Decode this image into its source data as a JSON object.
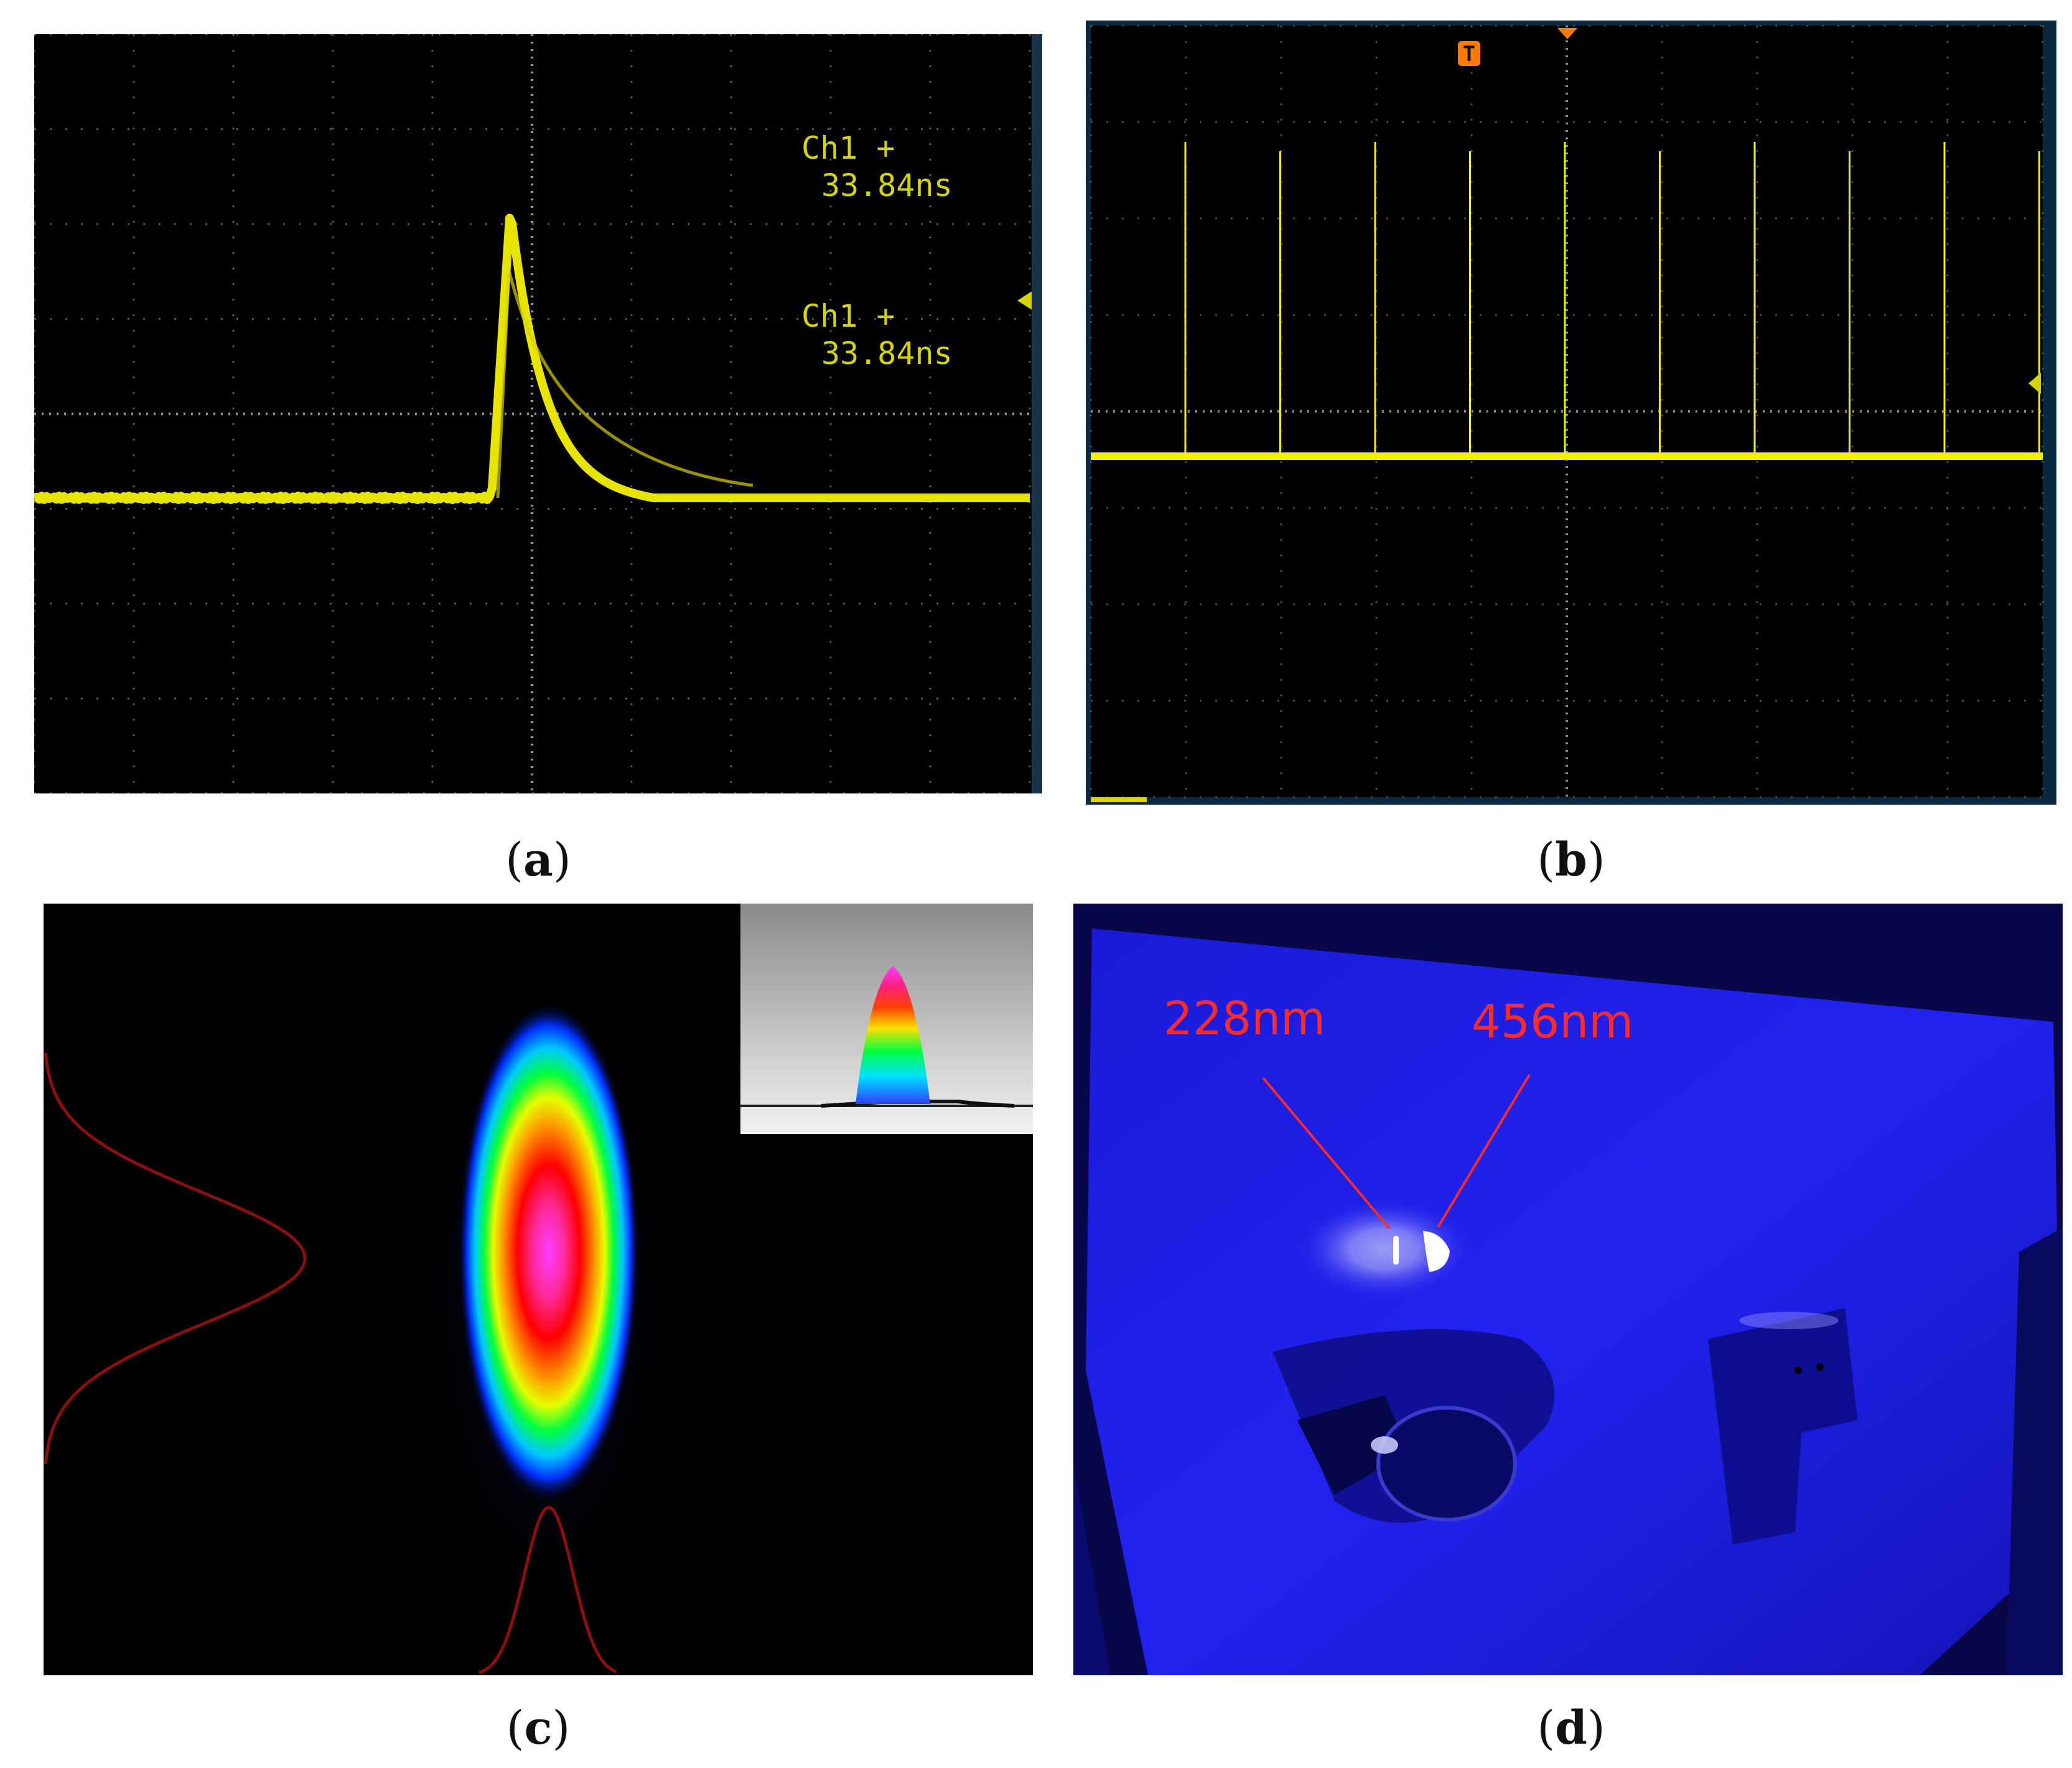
{
  "panels": [
    {
      "id": "a",
      "label": "a"
    },
    {
      "id": "b",
      "label": "b"
    },
    {
      "id": "c",
      "label": "c"
    },
    {
      "id": "d",
      "label": "d"
    }
  ],
  "panel_a": {
    "measurements": [
      {
        "channel": "Ch1 +",
        "value": "33.84ns"
      },
      {
        "channel": "Ch1 +",
        "value": "33.84ns"
      }
    ],
    "trace_color": "#f2f000",
    "screen_color": "#000000"
  },
  "panel_b": {
    "trigger_marker": "T",
    "trigger_color": "#ff7a00",
    "trace_color": "#f2f000",
    "pulse_count": 10
  },
  "panel_d": {
    "labels": [
      {
        "text": "228nm"
      },
      {
        "text": "456nm"
      }
    ],
    "label_color": "#ff2a2a"
  }
}
